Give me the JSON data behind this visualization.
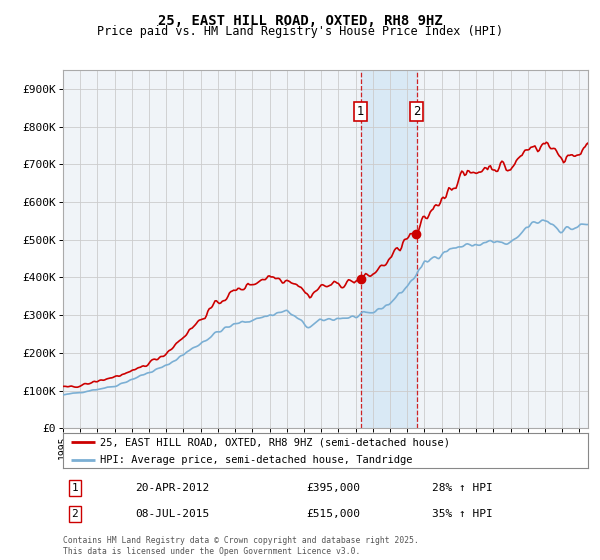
{
  "title": "25, EAST HILL ROAD, OXTED, RH8 9HZ",
  "subtitle": "Price paid vs. HM Land Registry's House Price Index (HPI)",
  "legend_line1": "25, EAST HILL ROAD, OXTED, RH8 9HZ (semi-detached house)",
  "legend_line2": "HPI: Average price, semi-detached house, Tandridge",
  "sale1_date": "20-APR-2012",
  "sale1_price": 395000,
  "sale1_label": "28% ↑ HPI",
  "sale2_date": "08-JUL-2015",
  "sale2_price": 515000,
  "sale2_label": "35% ↑ HPI",
  "ylabel_ticks": [
    "£0",
    "£100K",
    "£200K",
    "£300K",
    "£400K",
    "£500K",
    "£600K",
    "£700K",
    "£800K",
    "£900K"
  ],
  "ytick_vals": [
    0,
    100000,
    200000,
    300000,
    400000,
    500000,
    600000,
    700000,
    800000,
    900000
  ],
  "red_color": "#cc0000",
  "blue_color": "#7bafd4",
  "background_color": "#ffffff",
  "grid_color": "#cccccc",
  "sale1_year": 2012.3,
  "sale2_year": 2015.54,
  "footer": "Contains HM Land Registry data © Crown copyright and database right 2025.\nThis data is licensed under the Open Government Licence v3.0.",
  "xmin": 1995,
  "xmax": 2025.5,
  "ymin": 0,
  "ymax": 950000
}
